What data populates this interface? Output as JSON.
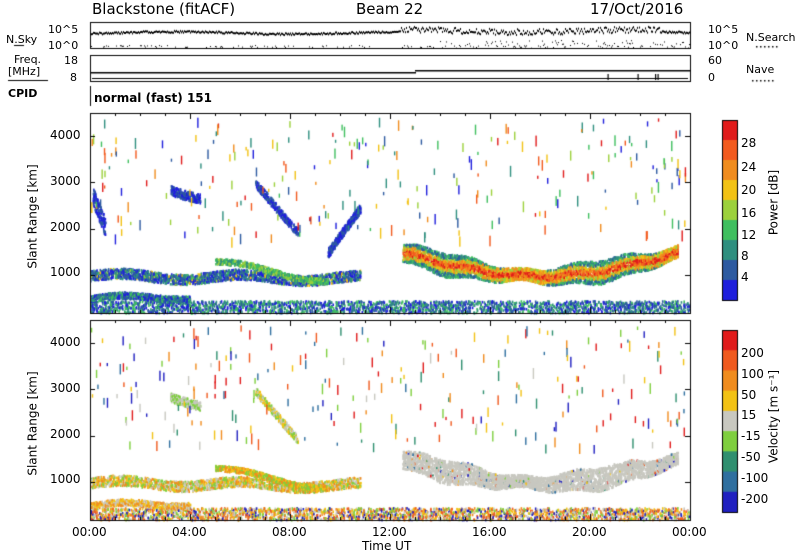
{
  "header": {
    "station": "Blackstone (fitACF)",
    "beam": "Beam 22",
    "date": "17/Oct/2016"
  },
  "noise_panel": {
    "left_label": "N.Sky",
    "right_label": "N.Search",
    "tick_top": "10^5",
    "tick_bottom": "10^0",
    "right_tick_top": "10^5",
    "right_tick_bottom": "10^0"
  },
  "freq_panel": {
    "left_label_1": "Freq.",
    "left_label_2": "[MHz]",
    "right_label": "Nave",
    "left_ticks": [
      "18",
      "8"
    ],
    "right_ticks": [
      "60",
      "0"
    ],
    "freq_ylim": [
      8,
      18
    ],
    "nave_ylim": [
      0,
      60
    ]
  },
  "cpid": {
    "label": "CPID",
    "value": "normal (fast) 151"
  },
  "x_axis": {
    "title": "Time UT",
    "ticks": [
      "00:00",
      "04:00",
      "08:00",
      "12:00",
      "16:00",
      "20:00",
      "00:00"
    ]
  },
  "chart_data": [
    {
      "type": "heatmap",
      "panel": "power",
      "ylabel": "Slant Range [km]",
      "yticks": [
        "4000",
        "3000",
        "2000",
        "1000"
      ],
      "ylim": [
        180,
        4500
      ],
      "xlim_hours": [
        0,
        24
      ],
      "colorbar_label": "Power [dB]",
      "colorbar_ticks": [
        "28",
        "24",
        "20",
        "16",
        "12",
        "8",
        "4"
      ],
      "colors": [
        "#1f1fdc",
        "#2d5aa0",
        "#2f8f7f",
        "#3fbf5f",
        "#9cd13c",
        "#f2c215",
        "#f08c1e",
        "#f25a1e",
        "#e01b1b"
      ],
      "features": [
        {
          "name": "near-range echoes",
          "t_start": 0,
          "t_end": 24,
          "range_km": 300,
          "level_db": 6
        },
        {
          "name": "morning band",
          "t_start": 0,
          "t_end": 10.8,
          "range_km_start": 900,
          "range_km_end": 950,
          "level_db": 10
        },
        {
          "name": "ionospheric scatter",
          "t_start": 12.5,
          "t_end": 23.5,
          "range_km_start": 1550,
          "range_km_end": 1400,
          "peak_range_km": 950,
          "level_db": 24
        }
      ]
    },
    {
      "type": "heatmap",
      "panel": "velocity",
      "ylabel": "Slant Range [km]",
      "yticks": [
        "4000",
        "3000",
        "2000",
        "1000"
      ],
      "ylim": [
        180,
        4500
      ],
      "xlim_hours": [
        0,
        24
      ],
      "colorbar_label": "Velocity [m s⁻¹]",
      "colorbar_ticks": [
        "200",
        "100",
        "50",
        "15",
        "-15",
        "-50",
        "-100",
        "-200"
      ],
      "colors": [
        "#2020c0",
        "#2f6f9f",
        "#2f8f6f",
        "#7fcf3f",
        "#c8c8c0",
        "#f2c215",
        "#f08c1e",
        "#f05a1e",
        "#e01b1b"
      ],
      "features": [
        {
          "name": "ground scatter",
          "t_start": 12.5,
          "t_end": 23.5,
          "velocity_ms": 0
        },
        {
          "name": "morning band",
          "t_start": 0,
          "t_end": 10.8,
          "velocity_ms": 40
        }
      ]
    }
  ]
}
